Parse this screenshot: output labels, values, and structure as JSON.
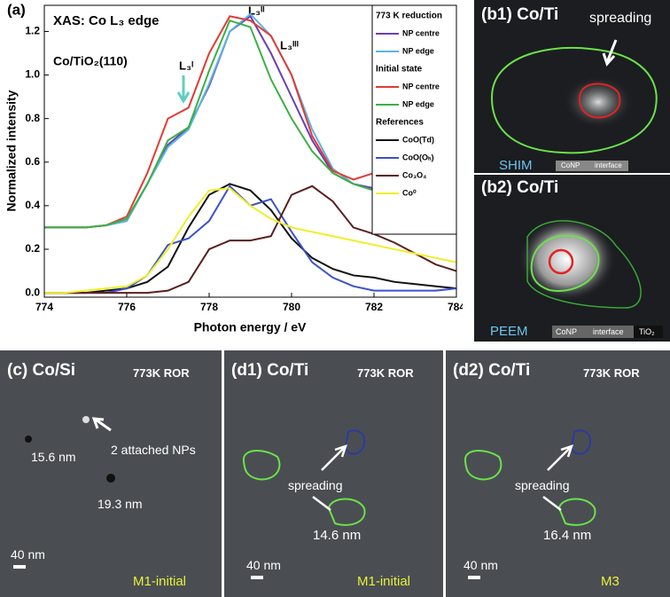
{
  "chart_data": {
    "type": "line",
    "panel_label": "(a)",
    "title": "XAS: Co L₃ edge",
    "subtitle": "Co/TiO₂(110)",
    "peak_labels": [
      "L₃ᴵ",
      "L₃ᴵᴵ",
      "L₃ᴵᴵᴵ"
    ],
    "xlabel": "Photon energy / eV",
    "ylabel": "Normalized intensity",
    "x": [
      774,
      774.5,
      775,
      775.5,
      776,
      776.5,
      777,
      777.5,
      778,
      778.5,
      779,
      779.5,
      780,
      780.5,
      781,
      781.5,
      782,
      782.5,
      783,
      783.5,
      784
    ],
    "xlim": [
      774,
      784
    ],
    "xticks": [
      774,
      776,
      778,
      780,
      782,
      784
    ],
    "ylim": [
      -0.02,
      1.32
    ],
    "yticks": [
      {
        "value": 0,
        "label": "0.0"
      },
      0.2,
      0.4,
      0.6,
      0.8,
      {
        "value": 1,
        "label": "1.0"
      },
      1.2
    ],
    "series": [
      {
        "group": "773 K reduction",
        "name": "NP centre",
        "color": "#6a3fb5",
        "values": [
          0.3,
          0.3,
          0.3,
          0.31,
          0.33,
          0.5,
          0.68,
          0.76,
          0.95,
          1.2,
          1.27,
          1.1,
          0.9,
          0.7,
          0.55,
          0.5,
          0.48,
          0.45,
          0.42,
          0.39,
          0.36
        ]
      },
      {
        "name": "NP edge",
        "color": "#5ab4e0",
        "values": [
          0.3,
          0.3,
          0.3,
          0.31,
          0.33,
          0.5,
          0.67,
          0.75,
          0.96,
          1.2,
          1.28,
          1.18,
          1.0,
          0.75,
          0.57,
          0.5,
          0.47,
          0.44,
          0.42,
          0.39,
          0.36
        ]
      },
      {
        "group": "Initial state",
        "name": "NP centre",
        "color": "#e23a35",
        "values": [
          0.3,
          0.3,
          0.3,
          0.31,
          0.35,
          0.55,
          0.8,
          0.85,
          1.1,
          1.27,
          1.25,
          1.18,
          1.0,
          0.72,
          0.56,
          0.52,
          0.55,
          0.5,
          0.47,
          0.4,
          0.36
        ]
      },
      {
        "name": "NP edge",
        "color": "#3cb043",
        "values": [
          0.3,
          0.3,
          0.3,
          0.31,
          0.34,
          0.5,
          0.7,
          0.76,
          1.02,
          1.25,
          1.22,
          0.98,
          0.8,
          0.65,
          0.55,
          0.5,
          0.47,
          0.44,
          0.41,
          0.38,
          0.35
        ]
      },
      {
        "group": "References",
        "name": "CoO(Td)",
        "color": "#111111",
        "values": [
          0,
          0,
          0,
          0.01,
          0.02,
          0.05,
          0.12,
          0.3,
          0.45,
          0.5,
          0.47,
          0.38,
          0.25,
          0.16,
          0.11,
          0.08,
          0.07,
          0.05,
          0.04,
          0.03,
          0.02
        ]
      },
      {
        "name": "CoO(Oₕ)",
        "color": "#3a52c9",
        "values": [
          0,
          0,
          0,
          0,
          0.02,
          0.08,
          0.22,
          0.25,
          0.33,
          0.49,
          0.4,
          0.43,
          0.28,
          0.14,
          0.07,
          0.03,
          0.01,
          0.01,
          0.01,
          0.01,
          0.02
        ]
      },
      {
        "name": "Co₃O₄",
        "color": "#5a1f1f",
        "values": [
          0,
          0,
          0,
          0,
          0,
          0,
          0.01,
          0.05,
          0.2,
          0.24,
          0.24,
          0.26,
          0.45,
          0.49,
          0.42,
          0.3,
          0.27,
          0.23,
          0.18,
          0.13,
          0.1
        ]
      },
      {
        "name": "Co⁰",
        "color": "#f0ee2a",
        "values": [
          0,
          0,
          0.01,
          0.02,
          0.03,
          0.08,
          0.2,
          0.35,
          0.47,
          0.48,
          0.4,
          0.34,
          0.3,
          0.28,
          0.26,
          0.24,
          0.22,
          0.2,
          0.18,
          0.16,
          0.14
        ]
      }
    ]
  },
  "images": {
    "b1": {
      "label": "(b1) Co/Ti",
      "arrow_text": "spreading",
      "method": "SHIM",
      "legend": [
        "CoNP",
        "interface"
      ]
    },
    "b2": {
      "label": "(b2) Co/Ti",
      "method": "PEEM",
      "legend": [
        "CoNP",
        "interface",
        "TiO₂"
      ]
    },
    "c": {
      "label": "(c) Co/Si",
      "condition": "773K ROR",
      "sizes": [
        "15.6 nm",
        "19.3 nm"
      ],
      "arrow_text": "2 attached NPs",
      "scale": "40 nm",
      "state": "M1-initial"
    },
    "d1": {
      "label": "(d1) Co/Ti",
      "condition": "773K ROR",
      "arrow_text": "spreading",
      "size": "14.6 nm",
      "scale": "40 nm",
      "state": "M1-initial"
    },
    "d2": {
      "label": "(d2) Co/Ti",
      "condition": "773K ROR",
      "arrow_text": "spreading",
      "size": "16.4 nm",
      "scale": "40 nm",
      "state": "M3"
    }
  }
}
